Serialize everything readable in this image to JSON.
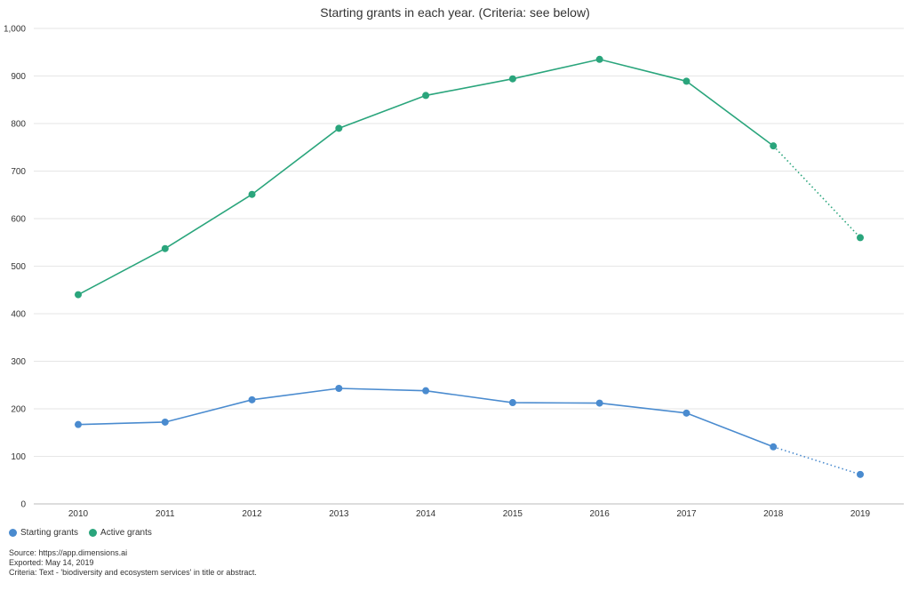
{
  "chart_data": {
    "type": "line",
    "title": "Starting grants in each year. (Criteria: see below)",
    "xlabel": "",
    "ylabel": "",
    "categories": [
      "2010",
      "2011",
      "2012",
      "2013",
      "2014",
      "2015",
      "2016",
      "2017",
      "2018",
      "2019"
    ],
    "ylim": [
      0,
      1000
    ],
    "yticks": [
      0,
      100,
      200,
      300,
      400,
      500,
      600,
      700,
      800,
      900,
      1000
    ],
    "ytick_labels": [
      "0",
      "100",
      "200",
      "300",
      "400",
      "500",
      "600",
      "700",
      "800",
      "900",
      "1,000"
    ],
    "grid": true,
    "legend_position": "bottom-left",
    "dotted_from_index": 8,
    "series": [
      {
        "name": "Starting grants",
        "color": "#4a8bcf",
        "values": [
          167,
          172,
          219,
          243,
          238,
          213,
          212,
          191,
          120,
          62
        ]
      },
      {
        "name": "Active grants",
        "color": "#2aa57c",
        "values": [
          440,
          537,
          651,
          790,
          859,
          894,
          935,
          889,
          753,
          560
        ]
      }
    ]
  },
  "footer": {
    "source": "Source: https://app.dimensions.ai",
    "exported": "Exported: May 14, 2019",
    "criteria": "Criteria: Text - 'biodiversity and ecosystem services' in title or abstract."
  }
}
